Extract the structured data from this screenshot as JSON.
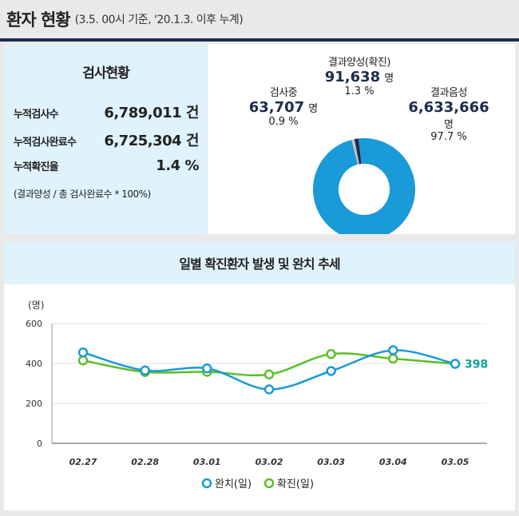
{
  "header": {
    "title": "환자 현황",
    "subtitle": "(3.5. 00시 기준, '20.1.3. 이후 누계)"
  },
  "summary": {
    "heading": "검사현황",
    "rows": [
      {
        "label": "누적검사수",
        "value": "6,789,011 건"
      },
      {
        "label": "누적검사완료수",
        "value": "6,725,304 건"
      },
      {
        "label": "누적확진율",
        "value": "1.4 %"
      }
    ],
    "note": "(결과양성 / 총 검사완료수 * 100%)"
  },
  "donut": {
    "segments": [
      {
        "name": "결과음성",
        "value": 6633666,
        "percent": 97.7,
        "color": "#1a9ad6"
      },
      {
        "name": "검사중",
        "value": 63707,
        "percent": 0.9,
        "color": "#c8c8c8"
      },
      {
        "name": "결과양성(확진)",
        "value": 91638,
        "percent": 1.3,
        "color": "#1c2c4c"
      }
    ],
    "labels": {
      "positive": {
        "title": "결과양성(확진)",
        "number": "91,638",
        "unit": "명",
        "percent": "1.3 %"
      },
      "testing": {
        "title": "검사중",
        "number": "63,707",
        "unit": "명",
        "percent": "0.9 %"
      },
      "negative": {
        "title": "결과음성",
        "number": "6,633,666",
        "unit": "명",
        "percent": "97.7 %"
      }
    }
  },
  "chart_data": {
    "type": "line",
    "title": "일별 확진환자 발생 및 완치 추세",
    "ylabel": "(명)",
    "ylim": [
      0,
      600
    ],
    "yticks": [
      "0",
      "200",
      "400",
      "600"
    ],
    "categories": [
      "02.27",
      "02.28",
      "03.01",
      "03.02",
      "03.03",
      "03.04",
      "03.05"
    ],
    "series": [
      {
        "name": "완치(일)",
        "color": "#1a9ad6",
        "values": [
          455,
          365,
          375,
          270,
          362,
          466,
          398
        ]
      },
      {
        "name": "확진(일)",
        "color": "#5cbf2a",
        "values": [
          415,
          357,
          358,
          345,
          447,
          424,
          398
        ]
      }
    ],
    "end_label": "398"
  }
}
